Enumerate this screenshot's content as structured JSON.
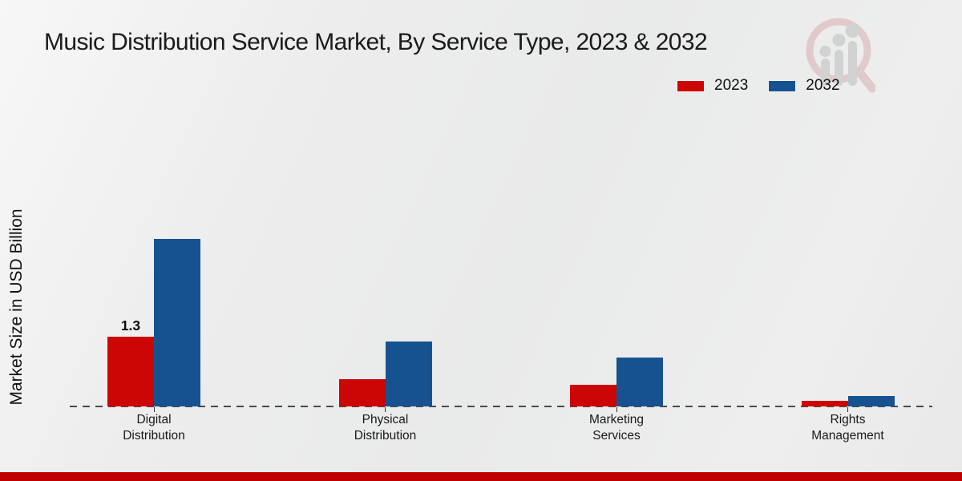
{
  "title": "Music Distribution Service Market, By Service Type, 2023 & 2032",
  "ylabel": "Market Size in USD Billion",
  "legend": [
    {
      "label": "2023",
      "color": "#cc0605"
    },
    {
      "label": "2032",
      "color": "#175290"
    }
  ],
  "colors": {
    "bar_2023": "#cc0605",
    "bar_2032": "#175290",
    "footer": "#c00000",
    "baseline": "#4a4a4a"
  },
  "watermark_icon": "magnifier-bar-chart-logo",
  "chart_data": {
    "type": "bar",
    "categories": [
      "Digital Distribution",
      "Physical Distribution",
      "Marketing Services",
      "Rights Management"
    ],
    "series": [
      {
        "name": "2023",
        "color": "#cc0605",
        "values": [
          1.3,
          0.5,
          0.4,
          0.1
        ]
      },
      {
        "name": "2032",
        "color": "#175290",
        "values": [
          3.1,
          1.2,
          0.9,
          0.2
        ]
      }
    ],
    "title": "Music Distribution Service Market, By Service Type, 2023 & 2032",
    "xlabel": "",
    "ylabel": "Market Size in USD Billion",
    "ylim": [
      0,
      3.5
    ],
    "grid": false,
    "legend_position": "top-right",
    "bar_labels": [
      {
        "series": "2023",
        "category": "Digital Distribution",
        "value": 1.3,
        "text": "1.3"
      }
    ]
  }
}
